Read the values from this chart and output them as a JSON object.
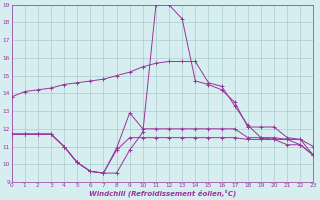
{
  "xlabel": "Windchill (Refroidissement éolien,°C)",
  "background_color": "#d6eef0",
  "grid_color": "#aaccd0",
  "line_color": "#993399",
  "xlim": [
    0,
    23
  ],
  "ylim": [
    9,
    19
  ],
  "xticks": [
    0,
    1,
    2,
    3,
    4,
    5,
    6,
    7,
    8,
    9,
    10,
    11,
    12,
    13,
    14,
    15,
    16,
    17,
    18,
    19,
    20,
    21,
    22,
    23
  ],
  "yticks": [
    9,
    10,
    11,
    12,
    13,
    14,
    15,
    16,
    17,
    18,
    19
  ],
  "line1_x": [
    0,
    1,
    2,
    3,
    4,
    5,
    6,
    7,
    8,
    9,
    10,
    11,
    12,
    13,
    14,
    15,
    16,
    17,
    18,
    19,
    20,
    21,
    22,
    23
  ],
  "line1_y": [
    13.8,
    14.1,
    14.2,
    14.3,
    14.5,
    14.6,
    14.7,
    14.8,
    15.0,
    15.2,
    15.5,
    15.7,
    15.8,
    15.8,
    15.8,
    14.6,
    14.4,
    13.3,
    12.2,
    11.5,
    11.4,
    11.4,
    11.1,
    10.5
  ],
  "line2_x": [
    0,
    1,
    2,
    3,
    4,
    5,
    6,
    7,
    8,
    9,
    10,
    11,
    12,
    13,
    14,
    15,
    16,
    17,
    18,
    19,
    20,
    21,
    22,
    23
  ],
  "line2_y": [
    11.7,
    11.7,
    11.7,
    11.7,
    11.0,
    10.1,
    9.6,
    9.5,
    9.5,
    10.8,
    11.8,
    19.0,
    19.0,
    18.2,
    14.7,
    14.5,
    14.2,
    13.5,
    12.1,
    12.1,
    12.1,
    11.5,
    11.4,
    11.0
  ],
  "line3_x": [
    0,
    1,
    2,
    3,
    4,
    5,
    6,
    7,
    8,
    9,
    10,
    11,
    12,
    13,
    14,
    15,
    16,
    17,
    18,
    19,
    20,
    21,
    22,
    23
  ],
  "line3_y": [
    11.7,
    11.7,
    11.7,
    11.7,
    11.0,
    10.1,
    9.6,
    9.5,
    10.9,
    12.9,
    12.0,
    12.0,
    12.0,
    12.0,
    12.0,
    12.0,
    12.0,
    12.0,
    11.5,
    11.5,
    11.5,
    11.4,
    11.4,
    10.5
  ],
  "line4_x": [
    0,
    1,
    2,
    3,
    4,
    5,
    6,
    7,
    8,
    9,
    10,
    11,
    12,
    13,
    14,
    15,
    16,
    17,
    18,
    19,
    20,
    21,
    22,
    23
  ],
  "line4_y": [
    11.7,
    11.7,
    11.7,
    11.7,
    11.0,
    10.1,
    9.6,
    9.5,
    10.8,
    11.5,
    11.5,
    11.5,
    11.5,
    11.5,
    11.5,
    11.5,
    11.5,
    11.5,
    11.4,
    11.4,
    11.4,
    11.1,
    11.1,
    10.5
  ]
}
